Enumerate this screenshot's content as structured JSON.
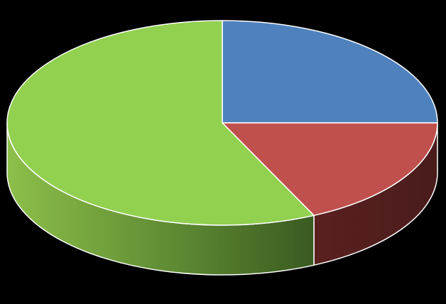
{
  "chart_data": {
    "type": "pie",
    "style": "3d",
    "title": "",
    "legend": "none",
    "slices": [
      {
        "value": 25,
        "color": "#4f81bd"
      },
      {
        "value": 18,
        "color": "#c0504d"
      },
      {
        "value": 57,
        "color": "#92d050"
      }
    ]
  },
  "background_color": "#000000"
}
